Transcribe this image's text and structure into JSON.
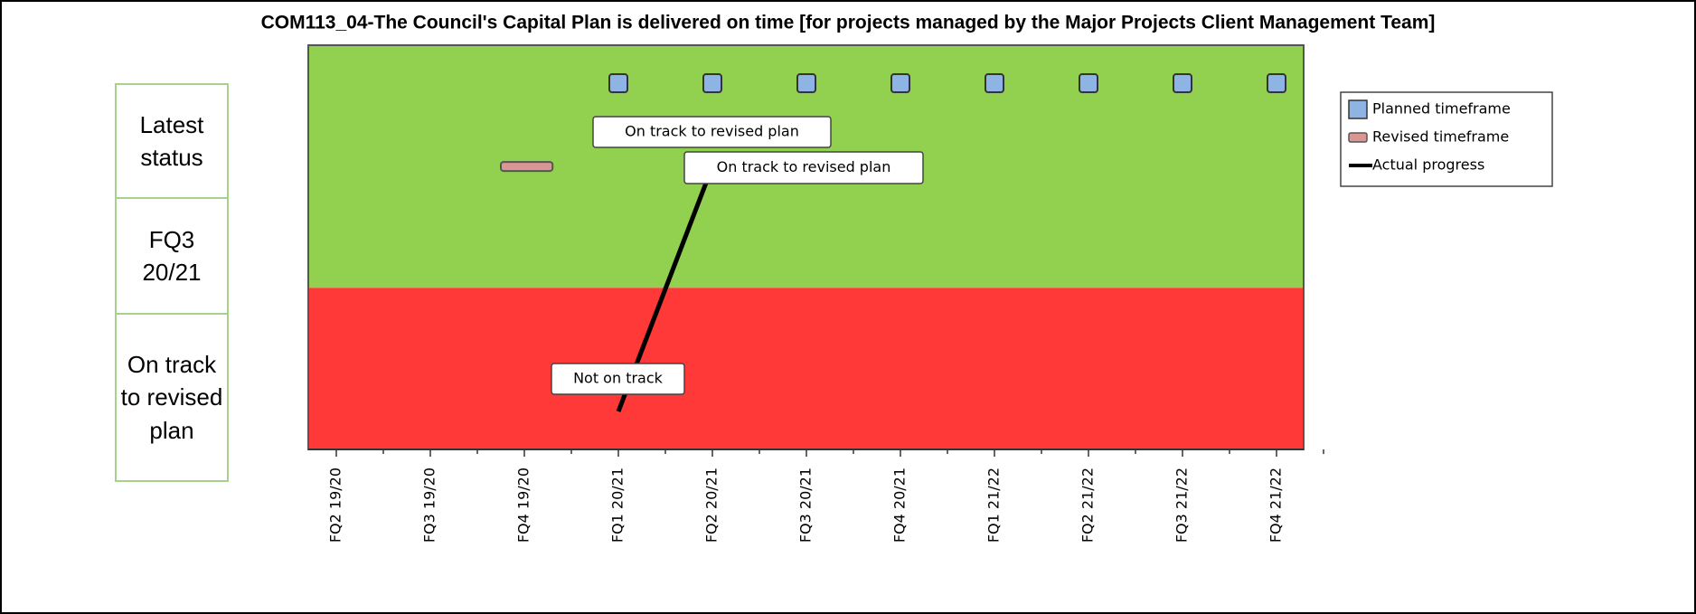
{
  "title": "COM113_04-The Council's Capital Plan is delivered on time [for projects managed by the Major Projects Client Management Team]",
  "status_panel": [
    "Latest status",
    "FQ3 20/21",
    "On track to revised plan"
  ],
  "chart_data": {
    "type": "milestone",
    "categories": [
      "FQ2 19/20",
      "FQ3 19/20",
      "FQ4 19/20",
      "FQ1 20/21",
      "FQ2 20/21",
      "FQ3 20/21",
      "FQ4 20/21",
      "FQ1 21/22",
      "FQ2 21/22",
      "FQ3 21/22",
      "FQ4 21/22"
    ],
    "ylim": [
      0,
      1
    ],
    "bands": [
      {
        "from": 0,
        "to": 0.4,
        "color": "#ff3838"
      },
      {
        "from": 0.4,
        "to": 1,
        "color": "#92d050"
      }
    ],
    "series": [
      {
        "name": "Planned timeframe",
        "color": "#8eb4e3",
        "x": [
          3,
          4,
          5,
          6,
          7,
          8,
          9,
          10
        ],
        "y": [
          0.906,
          0.906,
          0.906,
          0.906,
          0.906,
          0.906,
          0.906,
          0.906
        ]
      },
      {
        "name": "Revised timeframe",
        "color": "#d99694",
        "x": [
          1.75,
          2.3
        ],
        "y": [
          0.7,
          0.7
        ]
      },
      {
        "name": "Actual progress",
        "color": "#000000",
        "x": [
          3,
          3.95
        ],
        "y": [
          0.094,
          0.67
        ]
      }
    ],
    "annotations": [
      "On track to revised plan",
      "On track to revised plan",
      "Not on track"
    ]
  }
}
